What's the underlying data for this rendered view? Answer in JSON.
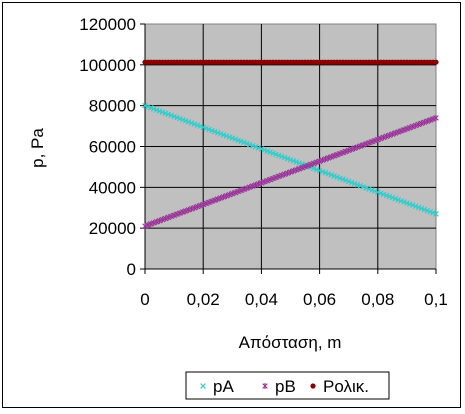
{
  "chart_data": {
    "type": "scatter",
    "title": "",
    "xlabel": "Απόσταση, m",
    "ylabel": "p, Pa",
    "xlim": [
      0,
      0.1
    ],
    "ylim": [
      0,
      120000
    ],
    "x_ticks": [
      "0",
      "0,02",
      "0,04",
      "0,06",
      "0,08",
      "0,1"
    ],
    "y_ticks": [
      "0",
      "20000",
      "40000",
      "60000",
      "80000",
      "100000",
      "120000"
    ],
    "grid": true,
    "plot_background": "#c0c0c0",
    "legend_position": "bottom",
    "series": [
      {
        "name": "pA",
        "color": "#33cccc",
        "marker": "x",
        "x_start": 0,
        "x_end": 0.1,
        "points": 101,
        "y_start": 80000,
        "y_end": 27000
      },
      {
        "name": "pB",
        "color": "#993399",
        "marker": "star",
        "x_start": 0,
        "x_end": 0.1,
        "points": 101,
        "y_start": 21000,
        "y_end": 74000
      },
      {
        "name": "Ρολικ.",
        "color": "#8b0000",
        "marker": "circle",
        "x_start": 0,
        "x_end": 0.1,
        "points": 101,
        "y_start": 101300,
        "y_end": 101300
      }
    ]
  }
}
